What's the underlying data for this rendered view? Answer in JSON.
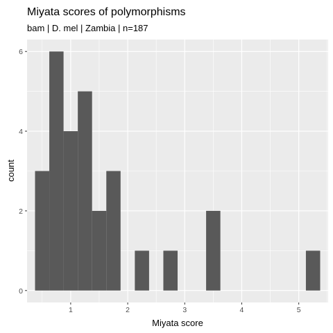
{
  "chart_data": {
    "type": "bar",
    "title": "Miyata scores of polymorphisms",
    "subtitle": "bam | D. mel | Zambia | n=187",
    "xlabel": "Miyata score",
    "ylabel": "count",
    "bin_width": 0.25,
    "bins": [
      {
        "start": 0.375,
        "end": 0.625,
        "count": 3
      },
      {
        "start": 0.625,
        "end": 0.875,
        "count": 6
      },
      {
        "start": 0.875,
        "end": 1.125,
        "count": 4
      },
      {
        "start": 1.125,
        "end": 1.375,
        "count": 5
      },
      {
        "start": 1.375,
        "end": 1.625,
        "count": 2
      },
      {
        "start": 1.625,
        "end": 1.875,
        "count": 3
      },
      {
        "start": 1.875,
        "end": 2.125,
        "count": 0
      },
      {
        "start": 2.125,
        "end": 2.375,
        "count": 1
      },
      {
        "start": 2.375,
        "end": 2.625,
        "count": 0
      },
      {
        "start": 2.625,
        "end": 2.875,
        "count": 1
      },
      {
        "start": 2.875,
        "end": 3.125,
        "count": 0
      },
      {
        "start": 3.125,
        "end": 3.375,
        "count": 0
      },
      {
        "start": 3.375,
        "end": 3.625,
        "count": 2
      },
      {
        "start": 3.625,
        "end": 3.875,
        "count": 0
      },
      {
        "start": 3.875,
        "end": 4.125,
        "count": 0
      },
      {
        "start": 4.125,
        "end": 4.375,
        "count": 0
      },
      {
        "start": 4.375,
        "end": 4.625,
        "count": 0
      },
      {
        "start": 4.625,
        "end": 4.875,
        "count": 0
      },
      {
        "start": 4.875,
        "end": 5.125,
        "count": 0
      },
      {
        "start": 5.125,
        "end": 5.375,
        "count": 1
      }
    ],
    "xlim": [
      0.235,
      5.515
    ],
    "ylim": [
      -0.3,
      6.3
    ],
    "x_ticks": [
      1,
      2,
      3,
      4,
      5
    ],
    "x_tick_labels": [
      "1",
      "2",
      "3",
      "4",
      "5"
    ],
    "y_ticks": [
      0,
      2,
      4,
      6
    ],
    "y_tick_labels": [
      "0",
      "2",
      "4",
      "6"
    ],
    "grid": true,
    "panel_color": "#ebebeb",
    "grid_color": "#ffffff",
    "bar_color": "#595959",
    "legend": "none"
  }
}
